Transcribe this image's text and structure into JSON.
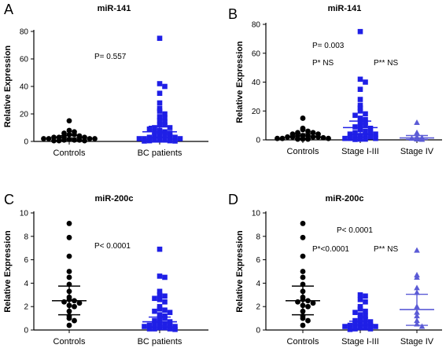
{
  "figure": {
    "panels": [
      "A",
      "B",
      "C",
      "D"
    ]
  },
  "chart_data": [
    {
      "panel": "A",
      "type": "scatter",
      "title": "miR-141",
      "ylabel": "Relative Expression",
      "ylim": [
        0,
        80
      ],
      "yticks": [
        0,
        20,
        40,
        60,
        80
      ],
      "categories": [
        "Controls",
        "BC patients"
      ],
      "annotations": [
        "P= 0.557"
      ],
      "series": [
        {
          "category": "Controls",
          "marker": "circle",
          "color": "#000000",
          "values": [
            15,
            8,
            7,
            6,
            5,
            5,
            4,
            4,
            3,
            3,
            3,
            2,
            2,
            2,
            2,
            1.5,
            1,
            1,
            1,
            0.5,
            0.5,
            0.5
          ],
          "mean": 2.5,
          "error": [
            1.2,
            4.2
          ]
        },
        {
          "category": "BC patients",
          "marker": "square",
          "color": "#1f1fe6",
          "values": [
            75,
            42,
            40,
            35,
            28,
            24,
            22,
            20,
            18,
            17,
            15,
            14,
            12,
            12,
            10,
            10,
            9,
            8,
            7,
            7,
            6,
            5,
            5,
            4,
            4,
            3,
            3,
            2,
            2,
            2,
            1,
            1,
            1,
            0.5,
            0.5,
            0.3,
            0.3
          ],
          "mean": 7,
          "error": [
            3,
            11
          ]
        }
      ]
    },
    {
      "panel": "B",
      "type": "scatter",
      "title": "miR-141",
      "ylabel": "Relative Expression",
      "ylim": [
        0,
        80
      ],
      "yticks": [
        0,
        20,
        40,
        60,
        80
      ],
      "categories": [
        "Controls",
        "Stage I-III",
        "Stage IV"
      ],
      "annotations": [
        "P= 0.003",
        "P* NS",
        "P** NS"
      ],
      "series": [
        {
          "category": "Controls",
          "marker": "circle",
          "color": "#000000",
          "values": [
            15,
            8,
            7,
            6,
            5,
            5,
            4,
            4,
            3,
            3,
            3,
            2,
            2,
            2,
            2,
            1.5,
            1,
            1,
            1,
            0.5,
            0.5,
            0.5
          ],
          "mean": 2.5,
          "error": [
            1.2,
            4.2
          ]
        },
        {
          "category": "Stage I-III",
          "marker": "square",
          "color": "#1f1fe6",
          "values": [
            75,
            42,
            40,
            35,
            28,
            24,
            22,
            20,
            18,
            17,
            15,
            14,
            13,
            12,
            10,
            10,
            9,
            8,
            7,
            6,
            5,
            5,
            4,
            4,
            3,
            3,
            2,
            2,
            1,
            1,
            1,
            0.5,
            0.5,
            0.3
          ],
          "mean": 8.5,
          "error": [
            4,
            13
          ]
        },
        {
          "category": "Stage IV",
          "marker": "triangle",
          "color": "#5b5bd6",
          "values": [
            12,
            5,
            2,
            1.5,
            1,
            0.5,
            0.3
          ],
          "mean": 1.3,
          "error": [
            0.3,
            3
          ]
        }
      ]
    },
    {
      "panel": "C",
      "type": "scatter",
      "title": "miR-200c",
      "ylabel": "Relative Expression",
      "ylim": [
        0,
        10
      ],
      "yticks": [
        0,
        2,
        4,
        6,
        8,
        10
      ],
      "categories": [
        "Controls",
        "BC patients"
      ],
      "annotations": [
        "P< 0.0001"
      ],
      "series": [
        {
          "category": "Controls",
          "marker": "circle",
          "color": "#000000",
          "values": [
            9.1,
            7.9,
            6.3,
            5.0,
            4.5,
            3.9,
            3.3,
            2.8,
            2.6,
            2.5,
            2.4,
            2.3,
            2.1,
            2.0,
            1.6,
            1.2,
            1.0,
            0.8,
            0.4
          ],
          "mean": 2.5,
          "error": [
            1.3,
            3.75
          ]
        },
        {
          "category": "BC patients",
          "marker": "square",
          "color": "#1f1fe6",
          "values": [
            6.9,
            4.6,
            4.5,
            3.3,
            3.0,
            2.9,
            2.7,
            2.6,
            2.4,
            2.0,
            1.8,
            1.7,
            1.6,
            1.5,
            1.3,
            1.2,
            1.0,
            1.0,
            0.8,
            0.7,
            0.6,
            0.5,
            0.5,
            0.4,
            0.4,
            0.3,
            0.3,
            0.2,
            0.2,
            0.1,
            0.1,
            0.1,
            0.05
          ],
          "mean": 0.7,
          "error": [
            0.2,
            1.1
          ]
        }
      ]
    },
    {
      "panel": "D",
      "type": "scatter",
      "title": "miR-200c",
      "ylabel": "Relative Expression",
      "ylim": [
        0,
        10
      ],
      "yticks": [
        0,
        2,
        4,
        6,
        8,
        10
      ],
      "categories": [
        "Controls",
        "Stage I-III",
        "Stage IV"
      ],
      "annotations": [
        "P< 0.0001",
        "P*<0.0001",
        "P** NS"
      ],
      "series": [
        {
          "category": "Controls",
          "marker": "circle",
          "color": "#000000",
          "values": [
            9.1,
            7.9,
            6.3,
            5.0,
            4.5,
            3.9,
            3.3,
            2.8,
            2.6,
            2.5,
            2.4,
            2.3,
            2.1,
            2.0,
            1.6,
            1.2,
            1.0,
            0.8,
            0.4
          ],
          "mean": 2.5,
          "error": [
            1.3,
            3.75
          ]
        },
        {
          "category": "Stage I-III",
          "marker": "square",
          "color": "#1f1fe6",
          "values": [
            3.0,
            2.9,
            2.6,
            2.4,
            2.0,
            1.8,
            1.6,
            1.5,
            1.3,
            1.2,
            1.0,
            0.9,
            0.8,
            0.7,
            0.6,
            0.5,
            0.5,
            0.4,
            0.4,
            0.3,
            0.3,
            0.2,
            0.2,
            0.1,
            0.1,
            0.05
          ],
          "mean": 0.45,
          "error": [
            0.1,
            0.75
          ]
        },
        {
          "category": "Stage IV",
          "marker": "triangle",
          "color": "#5b5bd6",
          "values": [
            6.8,
            4.7,
            4.5,
            3.6,
            3.2,
            2.0,
            1.5,
            1.2,
            0.8,
            0.5,
            0.3
          ],
          "mean": 1.75,
          "error": [
            0.4,
            3.05
          ]
        }
      ]
    }
  ]
}
